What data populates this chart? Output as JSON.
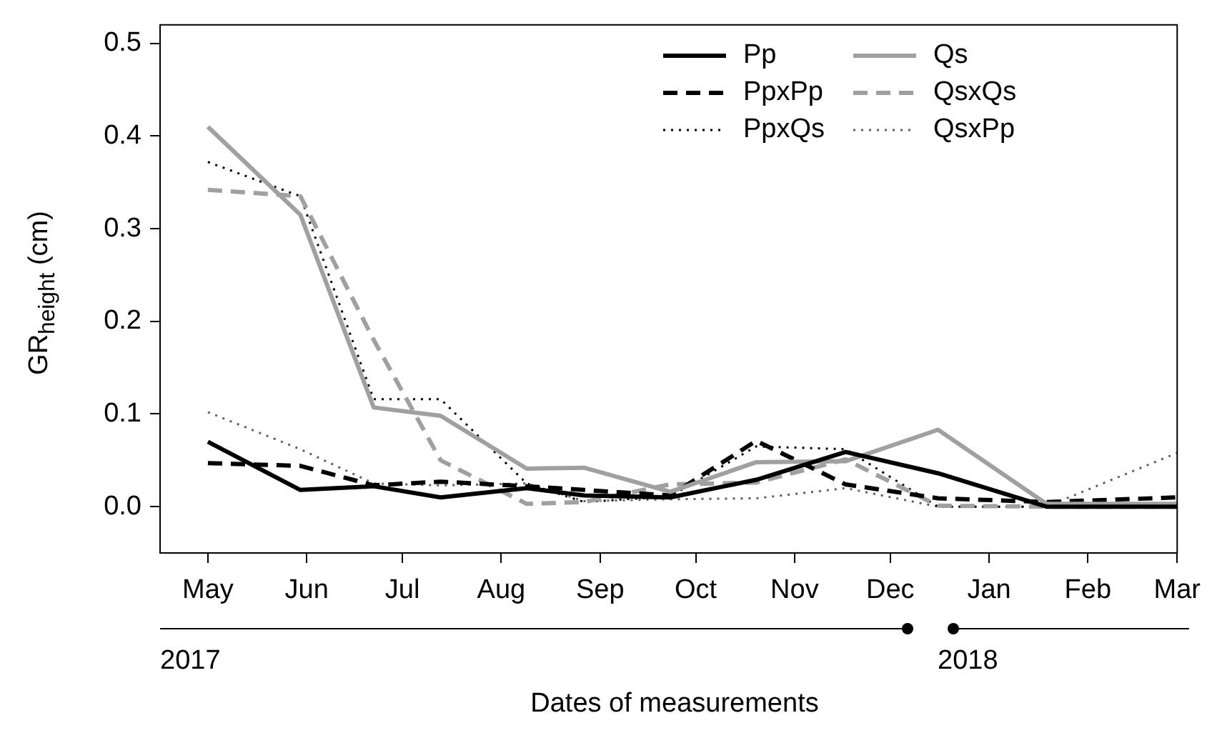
{
  "chart_data": {
    "type": "line",
    "xlabel": "Dates of measurements",
    "ylabel": "GR$_{height}$ (cm)",
    "annotations": [
      "2017",
      "2018"
    ],
    "x": [
      "2017-05-01",
      "2017-05-30",
      "2017-06-22",
      "2017-07-13",
      "2017-08-09",
      "2017-08-27",
      "2017-09-23",
      "2017-10-20",
      "2017-11-17",
      "2017-12-16",
      "2018-01-19",
      "2018-03-01"
    ],
    "xlim": [
      "2017-04-16",
      "2018-03-01"
    ],
    "xticks": [
      {
        "value": "2017-05-01",
        "label": "May"
      },
      {
        "value": "2017-06-01",
        "label": "Jun"
      },
      {
        "value": "2017-07-01",
        "label": "Jul"
      },
      {
        "value": "2017-08-01",
        "label": "Aug"
      },
      {
        "value": "2017-09-01",
        "label": "Sep"
      },
      {
        "value": "2017-10-01",
        "label": "Oct"
      },
      {
        "value": "2017-11-01",
        "label": "Nov"
      },
      {
        "value": "2017-12-01",
        "label": "Dec"
      },
      {
        "value": "2018-01-01",
        "label": "Jan"
      },
      {
        "value": "2018-02-01",
        "label": "Feb"
      },
      {
        "value": "2018-03-01",
        "label": "Mar"
      }
    ],
    "ylim": [
      -0.05,
      0.52
    ],
    "yticks": [
      {
        "value": 0,
        "label": "0.0"
      },
      {
        "value": 0.1,
        "label": "0.1"
      },
      {
        "value": 0.2,
        "label": "0.2"
      },
      {
        "value": 0.3,
        "label": "0.3"
      },
      {
        "value": 0.4,
        "label": "0.4"
      },
      {
        "value": 0.5,
        "label": "0.5"
      }
    ],
    "grid": false,
    "legend": "top right",
    "marker": "none",
    "series": [
      {
        "name": "Pp",
        "color": "#000000",
        "line_style": "solid",
        "values": [
          0.07,
          0.018,
          0.022,
          0.01,
          0.02,
          0.012,
          0.01,
          0.029,
          0.059,
          0.036,
          0.0,
          0.0
        ]
      },
      {
        "name": "Qs",
        "color": "#a0a0a0",
        "line_style": "solid",
        "values": [
          0.41,
          0.315,
          0.107,
          0.098,
          0.041,
          0.042,
          0.016,
          0.048,
          0.049,
          0.083,
          0.003,
          0.003
        ]
      },
      {
        "name": "PpxPp",
        "color": "#000000",
        "line_style": "dashed",
        "values": [
          0.047,
          0.044,
          0.023,
          0.027,
          0.022,
          0.018,
          0.012,
          0.071,
          0.024,
          0.009,
          0.005,
          0.01
        ]
      },
      {
        "name": "QsxQs",
        "color": "#a0a0a0",
        "line_style": "dashed",
        "values": [
          0.342,
          0.335,
          0.18,
          0.05,
          0.003,
          0.005,
          0.024,
          0.026,
          0.051,
          0.001,
          0.0,
          0.0
        ]
      },
      {
        "name": "PpxQs",
        "color": "#000000",
        "line_style": "dotted",
        "values": [
          0.372,
          0.335,
          0.116,
          0.116,
          0.025,
          0.005,
          0.011,
          0.065,
          0.062,
          0.0,
          0.0,
          0.0
        ]
      },
      {
        "name": "QsxPp",
        "color": "#606060",
        "line_style": "dotted",
        "values": [
          0.102,
          0.062,
          0.025,
          0.023,
          0.025,
          0.006,
          0.008,
          0.009,
          0.02,
          0.0,
          0.0,
          0.058
        ]
      }
    ]
  }
}
